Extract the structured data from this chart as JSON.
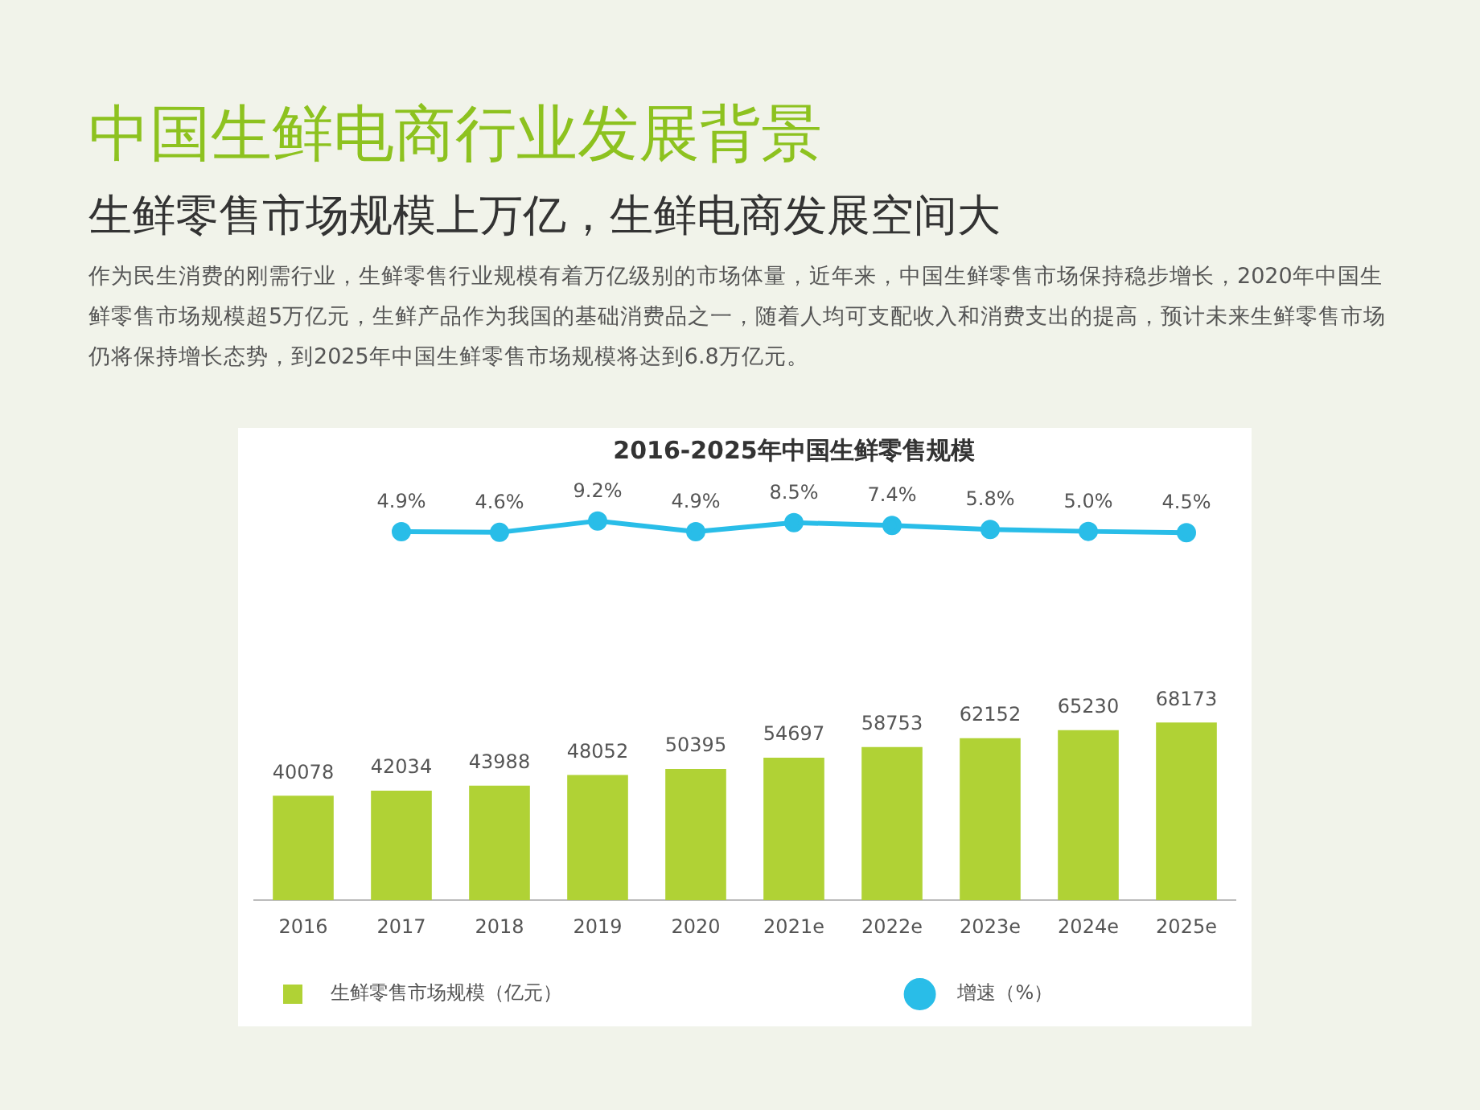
{
  "chart_data": [
    {
      "type": "line",
      "title": "2016-2025年中国生鲜零售规模",
      "annotations": [
        "中国生鲜电商行业发展背景",
        "生鲜零售市场规模上万亿，生鲜电商发展空间大",
        "作为民生消费的刚需行业，生鲜零售行业规模有着万亿级别的市场体量，近年来，中国生鲜零售市场保持稳步增长，2020年中国生鲜零售市场规模超5万亿元，生鲜产品作为我国的基础消费品之一，随着人均可支配收入和消费支出的提高，预计未来生鲜零售市场仍将保持增长态势，到2025年中国生鲜零售市场规模将达到6.8万亿元。"
      ],
      "categories": [
        null,
        null,
        null,
        null,
        null,
        null,
        null,
        null,
        null
      ],
      "series": [
        {
          "name": "增速（%）",
          "color": "#29bde8",
          "values": [
            4.9,
            4.6,
            9.2,
            4.9,
            8.5,
            7.4,
            5.8,
            5.0,
            4.5
          ],
          "value_labels": [
            "4.9%",
            "4.6%",
            "9.2%",
            "4.9%",
            "8.5%",
            "7.4%",
            "5.8%",
            "5.0%",
            "4.5%"
          ]
        }
      ],
      "tick_labels": false,
      "legend": "bottom right",
      "marker": "circle",
      "grid": false
    },
    {
      "type": "bar",
      "categories": [
        "2016",
        "2017",
        "2018",
        "2019",
        "2020",
        "2021e",
        "2022e",
        "2023e",
        "2024e",
        "2025e"
      ],
      "series": [
        {
          "name": "生鲜零售市场规模（亿元）",
          "color": "#b0d235",
          "values": [
            40078,
            42034,
            43988,
            48052,
            50395,
            54697,
            58753,
            62152,
            65230,
            68173
          ]
        }
      ],
      "tick_labels": "x",
      "data_labels": true,
      "legend": "bottom left",
      "grid": false
    }
  ]
}
